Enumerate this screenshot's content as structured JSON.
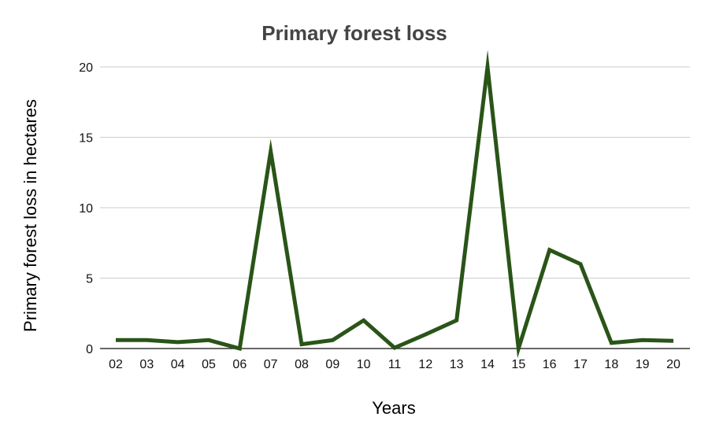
{
  "chart_data": {
    "type": "line",
    "title": "Primary forest loss",
    "xlabel": "Years",
    "ylabel": "Primary forest loss in hectares",
    "categories": [
      "02",
      "03",
      "04",
      "05",
      "06",
      "07",
      "08",
      "09",
      "10",
      "11",
      "12",
      "13",
      "14",
      "15",
      "16",
      "17",
      "18",
      "19",
      "20"
    ],
    "series": [
      {
        "values": [
          0.6,
          0.6,
          0.45,
          0.6,
          0.0,
          14.0,
          0.3,
          0.6,
          2.0,
          0.05,
          1.0,
          2.0,
          20.0,
          0.0,
          7.0,
          6.0,
          0.4,
          0.6,
          0.55
        ]
      }
    ],
    "yticks": [
      "0",
      "5",
      "10",
      "15",
      "20"
    ],
    "ylim": [
      0,
      20
    ],
    "grid": true,
    "legend": "none"
  },
  "colors": {
    "line": "#2a5418",
    "grid": "#cccccc",
    "axis": "#333333"
  }
}
